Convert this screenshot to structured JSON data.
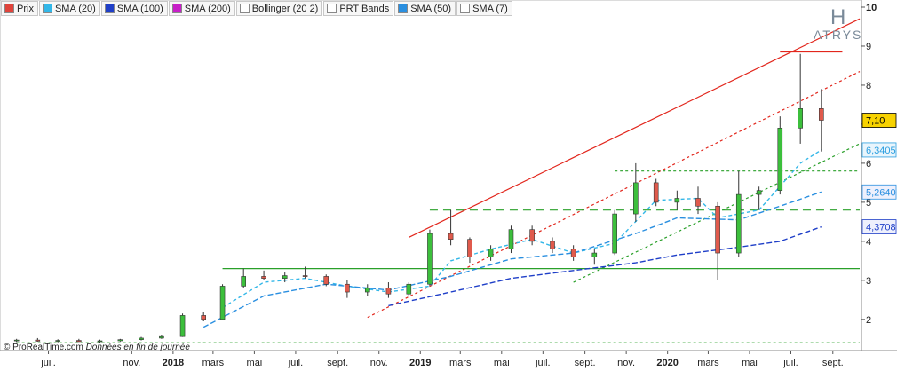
{
  "legend": [
    {
      "label": "Prix",
      "color": "#e0443c"
    },
    {
      "label": "SMA (20)",
      "color": "#33b7e8"
    },
    {
      "label": "SMA (100)",
      "color": "#1f3fc8"
    },
    {
      "label": "SMA (200)",
      "color": "#c81fc8"
    },
    {
      "label": "Bollinger (20 2)",
      "color": "#ffffff"
    },
    {
      "label": "PRT Bands",
      "color": "#ffffff"
    },
    {
      "label": "SMA (50)",
      "color": "#2a8fe0"
    },
    {
      "label": "SMA (7)",
      "color": "#ffffff"
    }
  ],
  "credit": {
    "text": "© ProRealTime.com",
    "italic": "Données en fin de journée"
  },
  "logo": {
    "mark": "H",
    "name": "ATRYS"
  },
  "chart_data": {
    "type": "candlestick",
    "y_ticks": [
      2,
      3,
      4,
      5,
      6,
      7,
      8,
      9,
      10
    ],
    "ylim": [
      1.2,
      10
    ],
    "x_ticks": [
      {
        "label": "juil.",
        "date": "2017-07",
        "bold": false
      },
      {
        "label": "nov.",
        "date": "2017-11",
        "bold": false
      },
      {
        "label": "2018",
        "date": "2018-01",
        "bold": true
      },
      {
        "label": "mars",
        "date": "2018-03",
        "bold": false
      },
      {
        "label": "mai",
        "date": "2018-05",
        "bold": false
      },
      {
        "label": "juil.",
        "date": "2018-07",
        "bold": false
      },
      {
        "label": "sept.",
        "date": "2018-09",
        "bold": false
      },
      {
        "label": "nov.",
        "date": "2018-11",
        "bold": false
      },
      {
        "label": "2019",
        "date": "2019-01",
        "bold": true
      },
      {
        "label": "mars",
        "date": "2019-03",
        "bold": false
      },
      {
        "label": "mai",
        "date": "2019-05",
        "bold": false
      },
      {
        "label": "juil.",
        "date": "2019-07",
        "bold": false
      },
      {
        "label": "sept.",
        "date": "2019-09",
        "bold": false
      },
      {
        "label": "nov.",
        "date": "2019-11",
        "bold": false
      },
      {
        "label": "2020",
        "date": "2020-01",
        "bold": true
      },
      {
        "label": "mars",
        "date": "2020-03",
        "bold": false
      },
      {
        "label": "mai",
        "date": "2020-05",
        "bold": false
      },
      {
        "label": "juil.",
        "date": "2020-07",
        "bold": false
      },
      {
        "label": "sept.",
        "date": "2020-09",
        "bold": false
      }
    ],
    "price_labels": [
      {
        "value": "7,10",
        "y": 7.1,
        "bg": "#f7d200",
        "fg": "#000000"
      },
      {
        "value": "6,3405",
        "y": 6.3405,
        "bg": "#e9f5fc",
        "fg": "#2a9ee0"
      },
      {
        "value": "5,2640",
        "y": 5.264,
        "bg": "#eef0fc",
        "fg": "#2a8fe0"
      },
      {
        "value": "4,3708",
        "y": 4.3708,
        "bg": "#eef0fc",
        "fg": "#1f3fc8"
      }
    ],
    "candles": [
      {
        "d": "2017-05",
        "o": 1.45,
        "h": 1.5,
        "l": 1.42,
        "c": 1.47
      },
      {
        "d": "2017-06",
        "o": 1.47,
        "h": 1.52,
        "l": 1.43,
        "c": 1.44
      },
      {
        "d": "2017-07",
        "o": 1.44,
        "h": 1.49,
        "l": 1.41,
        "c": 1.46
      },
      {
        "d": "2017-08",
        "o": 1.46,
        "h": 1.5,
        "l": 1.42,
        "c": 1.43
      },
      {
        "d": "2017-09",
        "o": 1.43,
        "h": 1.48,
        "l": 1.4,
        "c": 1.45
      },
      {
        "d": "2017-10",
        "o": 1.45,
        "h": 1.5,
        "l": 1.43,
        "c": 1.48
      },
      {
        "d": "2017-11",
        "o": 1.48,
        "h": 1.55,
        "l": 1.46,
        "c": 1.52
      },
      {
        "d": "2017-12",
        "o": 1.52,
        "h": 1.6,
        "l": 1.5,
        "c": 1.56
      },
      {
        "d": "2018-01",
        "o": 1.56,
        "h": 2.15,
        "l": 1.55,
        "c": 2.1
      },
      {
        "d": "2018-02",
        "o": 2.1,
        "h": 2.18,
        "l": 1.95,
        "c": 2.0
      },
      {
        "d": "2018-03",
        "o": 2.0,
        "h": 2.9,
        "l": 1.98,
        "c": 2.85
      },
      {
        "d": "2018-04",
        "o": 2.85,
        "h": 3.3,
        "l": 2.8,
        "c": 3.1
      },
      {
        "d": "2018-05",
        "o": 3.1,
        "h": 3.25,
        "l": 3.0,
        "c": 3.05
      },
      {
        "d": "2018-06",
        "o": 3.05,
        "h": 3.2,
        "l": 2.95,
        "c": 3.12
      },
      {
        "d": "2018-07",
        "o": 3.12,
        "h": 3.35,
        "l": 3.05,
        "c": 3.1
      },
      {
        "d": "2018-08",
        "o": 3.1,
        "h": 3.15,
        "l": 2.85,
        "c": 2.9
      },
      {
        "d": "2018-09",
        "o": 2.9,
        "h": 3.0,
        "l": 2.55,
        "c": 2.7
      },
      {
        "d": "2018-10",
        "o": 2.7,
        "h": 2.9,
        "l": 2.6,
        "c": 2.8
      },
      {
        "d": "2018-11",
        "o": 2.8,
        "h": 2.95,
        "l": 2.55,
        "c": 2.65
      },
      {
        "d": "2018-12",
        "o": 2.65,
        "h": 2.95,
        "l": 2.6,
        "c": 2.9
      },
      {
        "d": "2019-01",
        "o": 2.9,
        "h": 4.3,
        "l": 2.85,
        "c": 4.2
      },
      {
        "d": "2019-02",
        "o": 4.2,
        "h": 4.8,
        "l": 3.9,
        "c": 4.05
      },
      {
        "d": "2019-03",
        "o": 4.05,
        "h": 4.1,
        "l": 3.45,
        "c": 3.6
      },
      {
        "d": "2019-04",
        "o": 3.6,
        "h": 3.9,
        "l": 3.5,
        "c": 3.8
      },
      {
        "d": "2019-05",
        "o": 3.8,
        "h": 4.4,
        "l": 3.7,
        "c": 4.3
      },
      {
        "d": "2019-06",
        "o": 4.3,
        "h": 4.4,
        "l": 3.9,
        "c": 4.0
      },
      {
        "d": "2019-07",
        "o": 4.0,
        "h": 4.1,
        "l": 3.7,
        "c": 3.8
      },
      {
        "d": "2019-08",
        "o": 3.8,
        "h": 3.9,
        "l": 3.5,
        "c": 3.6
      },
      {
        "d": "2019-09",
        "o": 3.6,
        "h": 3.8,
        "l": 3.4,
        "c": 3.7
      },
      {
        "d": "2019-10",
        "o": 3.7,
        "h": 4.8,
        "l": 3.65,
        "c": 4.7
      },
      {
        "d": "2019-11",
        "o": 4.7,
        "h": 6.0,
        "l": 4.5,
        "c": 5.5
      },
      {
        "d": "2019-12",
        "o": 5.5,
        "h": 5.6,
        "l": 4.9,
        "c": 5.0
      },
      {
        "d": "2020-01",
        "o": 5.0,
        "h": 5.3,
        "l": 4.8,
        "c": 5.1
      },
      {
        "d": "2020-02",
        "o": 5.1,
        "h": 5.4,
        "l": 4.7,
        "c": 4.9
      },
      {
        "d": "2020-03",
        "o": 4.9,
        "h": 5.0,
        "l": 3.0,
        "c": 3.7
      },
      {
        "d": "2020-04",
        "o": 3.7,
        "h": 5.8,
        "l": 3.6,
        "c": 5.2
      },
      {
        "d": "2020-05",
        "o": 5.2,
        "h": 5.4,
        "l": 4.8,
        "c": 5.3
      },
      {
        "d": "2020-06",
        "o": 5.3,
        "h": 7.2,
        "l": 5.2,
        "c": 6.9
      },
      {
        "d": "2020-07",
        "o": 6.9,
        "h": 8.8,
        "l": 6.5,
        "c": 7.4
      },
      {
        "d": "2020-08",
        "o": 7.4,
        "h": 7.9,
        "l": 6.3,
        "c": 7.1
      }
    ],
    "sma20": [
      [
        "2018-03",
        2.3
      ],
      [
        "2018-05",
        2.95
      ],
      [
        "2018-07",
        3.05
      ],
      [
        "2018-09",
        2.85
      ],
      [
        "2018-11",
        2.7
      ],
      [
        "2019-01",
        2.85
      ],
      [
        "2019-02",
        3.5
      ],
      [
        "2019-04",
        3.8
      ],
      [
        "2019-06",
        4.05
      ],
      [
        "2019-08",
        3.7
      ],
      [
        "2019-10",
        3.95
      ],
      [
        "2019-12",
        5.05
      ],
      [
        "2020-02",
        5.1
      ],
      [
        "2020-03",
        4.6
      ],
      [
        "2020-05",
        4.8
      ],
      [
        "2020-07",
        6.0
      ],
      [
        "2020-08",
        6.3405
      ]
    ],
    "sma50": [
      [
        "2018-02",
        1.8
      ],
      [
        "2018-05",
        2.6
      ],
      [
        "2018-08",
        2.9
      ],
      [
        "2018-11",
        2.75
      ],
      [
        "2019-02",
        3.1
      ],
      [
        "2019-05",
        3.55
      ],
      [
        "2019-08",
        3.7
      ],
      [
        "2019-11",
        4.2
      ],
      [
        "2020-01",
        4.6
      ],
      [
        "2020-04",
        4.55
      ],
      [
        "2020-06",
        4.9
      ],
      [
        "2020-08",
        5.264
      ]
    ],
    "sma100": [
      [
        "2018-11",
        2.35
      ],
      [
        "2019-02",
        2.7
      ],
      [
        "2019-05",
        3.05
      ],
      [
        "2019-08",
        3.25
      ],
      [
        "2019-11",
        3.45
      ],
      [
        "2020-01",
        3.65
      ],
      [
        "2020-04",
        3.85
      ],
      [
        "2020-06",
        4.0
      ],
      [
        "2020-08",
        4.3708
      ]
    ],
    "lines": [
      {
        "kind": "trend",
        "style": "solid",
        "color": "#e2261c",
        "from": [
          "2018-12",
          4.1
        ],
        "to": [
          "2020-10",
          9.7
        ]
      },
      {
        "kind": "trend",
        "style": "dashed",
        "color": "#e2261c",
        "from": [
          "2018-10",
          2.05
        ],
        "to": [
          "2020-10",
          8.35
        ]
      },
      {
        "kind": "trend",
        "style": "dashed",
        "color": "#2aa02a",
        "from": [
          "2019-08",
          2.95
        ],
        "to": [
          "2020-10",
          6.5
        ]
      },
      {
        "kind": "horizontal",
        "style": "solid",
        "color": "#e2261c",
        "y": 8.85,
        "from": "2020-06",
        "to": "2020-09"
      },
      {
        "kind": "horizontal",
        "style": "dashed",
        "color": "#2aa02a",
        "y": 5.8,
        "from": "2019-10",
        "to": "2020-10"
      },
      {
        "kind": "horizontal",
        "style": "longdash",
        "color": "#2aa02a",
        "y": 4.8,
        "from": "2019-01",
        "to": "2020-10"
      },
      {
        "kind": "horizontal",
        "style": "solid",
        "color": "#2aa02a",
        "y": 3.3,
        "from": "2018-03",
        "to": "2020-10"
      },
      {
        "kind": "horizontal",
        "style": "dashed",
        "color": "#2aa02a",
        "y": 1.4,
        "from": "2017-05",
        "to": "2020-10"
      }
    ]
  }
}
